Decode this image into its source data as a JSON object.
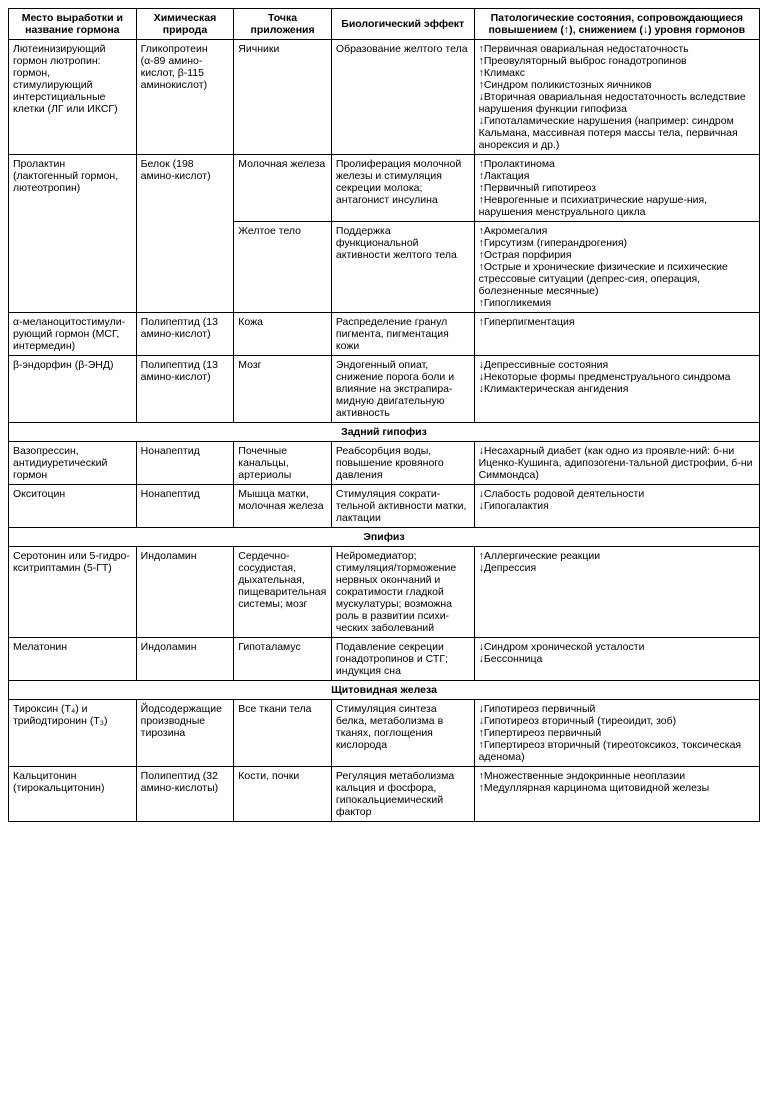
{
  "headers": {
    "c1": "Место выработки и название гормона",
    "c2": "Химическая природа",
    "c3": "Точка приложения",
    "c4": "Биологический эффект",
    "c5": "Патологические состояния, сопровождающиеся повышением (↑), снижением (↓) уровня гормонов"
  },
  "sections": {
    "posterior": "Задний гипофиз",
    "epiphysis": "Эпифиз",
    "thyroid": "Щитовидная железа"
  },
  "rows": {
    "lh": {
      "name": "Лютеинизирующий гормон лютропин: гормон, стимулирующий интерстициальные клетки (ЛГ или ИКСГ)",
      "chem": "Гликопротеин (α-89 амино-кислот, β-115 аминокислот)",
      "target": "Яичники",
      "effect": "Образование желтого тела",
      "cond": [
        "↑Первичная овариальная недостаточность",
        "↑Преовуляторный выброс гонадотропинов",
        "↑Климакс",
        "↑Синдром поликистозных яичников",
        "↓Вторичная овариальная недостаточность вследствие нарушения функции гипофиза",
        "↓Гипоталамические нарушения (например: синдром Кальмана, массивная потеря массы тела, первичная анорексия и др.)"
      ]
    },
    "prl": {
      "name": "Пролактин (лактогенный гормон, лютеотропин)",
      "chem": "Белок (198 амино-кислот)",
      "target1": "Молочная железа",
      "effect1": "Пролиферация молочной железы и стимуляция секреции молока; антагонист инсулина",
      "cond1": [
        "↑Пролактинома",
        "↑Лактация",
        "↑Первичный гипотиреоз",
        "↑Неврогенные и психиатрические наруше-ния, нарушения менструального цикла"
      ],
      "target2": "Желтое тело",
      "effect2": "Поддержка функциональной активности желтого тела",
      "cond2": [
        "↑Акромегалия",
        "↑Гирсутизм (гиперандрогения)",
        "↑Острая порфирия",
        "↑Острые и хронические физические и психические стрессовые ситуации (депрес-сия, операция, болезненные месячные)",
        "↑Гипогликемия"
      ]
    },
    "msh": {
      "name": "α-меланоцитостимули-рующий гормон (МСГ, интермедин)",
      "chem": "Полипептид (13 амино-кислот)",
      "target": "Кожа",
      "effect": "Распределение гранул пигмента, пигментация кожи",
      "cond": [
        "↑Гиперпигментация"
      ]
    },
    "end": {
      "name": "β-эндорфин (β-ЭНД)",
      "chem": "Полипептид (13 амино-кислот)",
      "target": "Мозг",
      "effect": "Эндогенный опиат, снижение порога боли и влияние на экстрапира-мидную двигательную активность",
      "cond": [
        "↓Депрессивные состояния",
        "↓Некоторые формы предменструального синдрома",
        "↓Климактерическая ангидения"
      ]
    },
    "adh": {
      "name": "Вазопрессин, антидиуретический гормон",
      "chem": "Нонапептид",
      "target": "Почечные канальцы, артериолы",
      "effect": "Реабсорбция воды, повышение кровяного давления",
      "cond": [
        "↓Несахарный диабет (как одно из проявле-ний: б-ни Иценко-Кушинга, адипозогени-тальной дистрофии, б-ни Симмондса)"
      ]
    },
    "oxy": {
      "name": "Окситоцин",
      "chem": "Нонапептид",
      "target": "Мышца матки, молочная железа",
      "effect": "Стимуляция сократи-тельной активности матки, лактации",
      "cond": [
        "↓Слабость родовой деятельности",
        "↓Гипогалактия"
      ]
    },
    "ser": {
      "name": "Серотонин или 5-гидро-кситриптамин (5-ГТ)",
      "chem": "Индоламин",
      "target": "Сердечно-сосудистая, дыхательная, пищеварительная системы; мозг",
      "effect": "Нейромедиатор; стимуляция/торможение нервных окончаний и сократимости гладкой мускулатуры; возможна роль в развитии психи-ческих заболеваний",
      "cond": [
        "↑Аллергические реакции",
        "↓Депрессия"
      ]
    },
    "mel": {
      "name": "Мелатонин",
      "chem": "Индоламин",
      "target": "Гипоталамус",
      "effect": "Подавление секреции гонадотропинов и СТГ; индукция сна",
      "cond": [
        "↓Синдром хронической усталости",
        "↓Бессонница"
      ]
    },
    "t4": {
      "name": "Тироксин (T₄) и трийодтиронин (T₃)",
      "chem": "Йодсодержащие производные тирозина",
      "target": "Все ткани тела",
      "effect": "Стимуляция синтеза белка, метаболизма в тканях, поглощения кислорода",
      "cond": [
        "↓Гипотиреоз первичный",
        "↓Гипотиреоз вторичный (тиреоидит, зоб)",
        "↑Гипертиреоз первичный",
        "↑Гипертиреоз вторичный (тиреотоксикоз, токсическая аденома)"
      ]
    },
    "cal": {
      "name": "Кальцитонин (тирокальцитонин)",
      "chem": "Полипептид (32 амино-кислоты)",
      "target": "Кости, почки",
      "effect": "Регуляция метаболизма кальция и фосфора, гипокальциемический фактор",
      "cond": [
        "↑Множественные эндокринные неоплазии",
        "↑Медуллярная карцинома щитовидной железы"
      ]
    }
  }
}
